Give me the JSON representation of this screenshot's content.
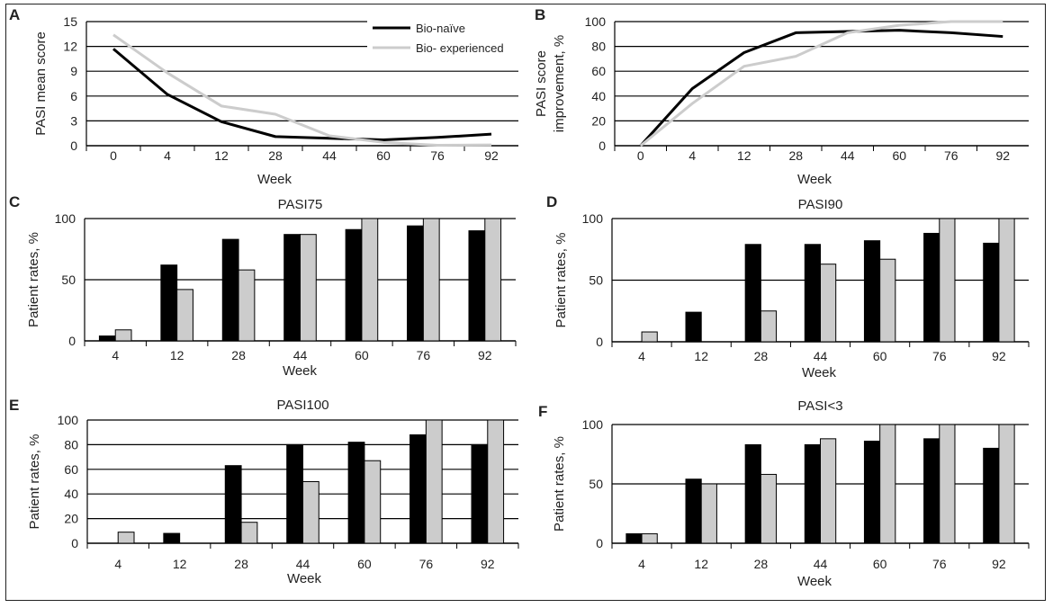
{
  "colors": {
    "naive": "#000000",
    "experienced": "#cccccc",
    "axis": "#000000",
    "grid": "#000000"
  },
  "chart_data": [
    {
      "id": "A",
      "type": "line",
      "panel_label": "A",
      "title": "",
      "xlabel": "Week",
      "ylabel": "PASI mean score",
      "categories": [
        "0",
        "4",
        "12",
        "28",
        "44",
        "60",
        "76",
        "92"
      ],
      "ylim": [
        0,
        15
      ],
      "yticks": [
        0,
        3,
        6,
        9,
        12,
        15
      ],
      "grid": true,
      "legend_position": "top-right",
      "series": [
        {
          "name": "Bio-naïve",
          "values": [
            11.7,
            6.2,
            2.9,
            1.1,
            0.9,
            0.7,
            1.0,
            1.4
          ]
        },
        {
          "name": "Bio- experienced",
          "values": [
            13.4,
            8.8,
            4.8,
            3.8,
            1.2,
            0.4,
            0.05,
            0.1
          ]
        }
      ]
    },
    {
      "id": "B",
      "type": "line",
      "panel_label": "B",
      "title": "",
      "xlabel": "Week",
      "ylabel": "PASI score improvement, %",
      "ylabel_lines": [
        "PASI score",
        "improvement, %"
      ],
      "categories": [
        "0",
        "4",
        "12",
        "28",
        "44",
        "60",
        "76",
        "92"
      ],
      "ylim": [
        0,
        100
      ],
      "yticks": [
        0,
        20,
        40,
        60,
        80,
        100
      ],
      "grid": true,
      "series": [
        {
          "name": "Bio-naïve",
          "values": [
            0,
            46,
            75,
            91,
            92,
            93,
            91,
            88
          ]
        },
        {
          "name": "Bio- experienced",
          "values": [
            0,
            34,
            64,
            72,
            91,
            97,
            100,
            100
          ]
        }
      ]
    },
    {
      "id": "C",
      "type": "bar",
      "panel_label": "C",
      "title": "PASI75",
      "xlabel": "Week",
      "ylabel": "Patient rates, %",
      "categories": [
        "4",
        "12",
        "28",
        "44",
        "60",
        "76",
        "92"
      ],
      "ylim": [
        0,
        100
      ],
      "yticks": [
        0,
        50,
        100
      ],
      "grid": true,
      "series": [
        {
          "name": "Bio-naïve",
          "values": [
            4,
            62,
            83,
            87,
            91,
            94,
            90
          ]
        },
        {
          "name": "Bio- experienced",
          "values": [
            9,
            42,
            58,
            87,
            100,
            100,
            100
          ]
        }
      ]
    },
    {
      "id": "D",
      "type": "bar",
      "panel_label": "D",
      "title": "PASI90",
      "xlabel": "Week",
      "ylabel": "Patient rates, %",
      "categories": [
        "4",
        "12",
        "28",
        "44",
        "60",
        "76",
        "92"
      ],
      "ylim": [
        0,
        100
      ],
      "yticks": [
        0,
        50,
        100
      ],
      "grid": true,
      "series": [
        {
          "name": "Bio-naïve",
          "values": [
            0,
            24,
            79,
            79,
            82,
            88,
            80
          ]
        },
        {
          "name": "Bio- experienced",
          "values": [
            8,
            0,
            25,
            63,
            67,
            100,
            100
          ]
        }
      ]
    },
    {
      "id": "E",
      "type": "bar",
      "panel_label": "E",
      "title": "PASI100",
      "xlabel": "Week",
      "ylabel": "Patient rates, %",
      "categories": [
        "4",
        "12",
        "28",
        "44",
        "60",
        "76",
        "92"
      ],
      "ylim": [
        0,
        100
      ],
      "yticks": [
        0,
        20,
        40,
        60,
        80,
        100
      ],
      "grid": true,
      "series": [
        {
          "name": "Bio-naïve",
          "values": [
            0,
            8,
            63,
            80,
            82,
            88,
            80
          ]
        },
        {
          "name": "Bio- experienced",
          "values": [
            9,
            0,
            17,
            50,
            67,
            100,
            100
          ]
        }
      ]
    },
    {
      "id": "F",
      "type": "bar",
      "panel_label": "F",
      "title": "PASI<3",
      "xlabel": "Week",
      "ylabel": "Patient rates, %",
      "categories": [
        "4",
        "12",
        "28",
        "44",
        "60",
        "76",
        "92"
      ],
      "ylim": [
        0,
        100
      ],
      "yticks": [
        0,
        50,
        100
      ],
      "grid": true,
      "series": [
        {
          "name": "Bio-naïve",
          "values": [
            8,
            54,
            83,
            83,
            86,
            88,
            80
          ]
        },
        {
          "name": "Bio- experienced",
          "values": [
            8,
            50,
            58,
            88,
            100,
            100,
            100
          ]
        }
      ]
    }
  ]
}
